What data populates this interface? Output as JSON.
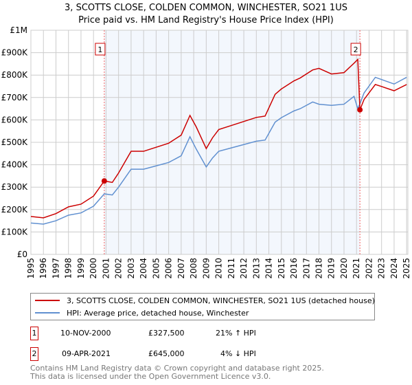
{
  "title_line1": "3, SCOTTS CLOSE, COLDEN COMMON, WINCHESTER, SO21 1US",
  "title_line2": "Price paid vs. HM Land Registry's House Price Index (HPI)",
  "chart_data": {
    "type": "line",
    "title": "3, SCOTTS CLOSE, COLDEN COMMON, WINCHESTER, SO21 1US - Price paid vs. HM Land Registry's House Price Index (HPI)",
    "xlim": [
      1995,
      2025.1
    ],
    "ylim": [
      0,
      1000000
    ],
    "y_ticks": [
      {
        "v": 0,
        "label": "£0"
      },
      {
        "v": 100000,
        "label": "£100K"
      },
      {
        "v": 200000,
        "label": "£200K"
      },
      {
        "v": 300000,
        "label": "£300K"
      },
      {
        "v": 400000,
        "label": "£400K"
      },
      {
        "v": 500000,
        "label": "£500K"
      },
      {
        "v": 600000,
        "label": "£600K"
      },
      {
        "v": 700000,
        "label": "£700K"
      },
      {
        "v": 800000,
        "label": "£800K"
      },
      {
        "v": 900000,
        "label": "£900K"
      },
      {
        "v": 1000000,
        "label": "£1M"
      }
    ],
    "x_ticks": [
      "1995",
      "1996",
      "1997",
      "1998",
      "1999",
      "2000",
      "2001",
      "2002",
      "2003",
      "2004",
      "2005",
      "2006",
      "2007",
      "2008",
      "2009",
      "2010",
      "2011",
      "2012",
      "2013",
      "2014",
      "2015",
      "2016",
      "2017",
      "2018",
      "2019",
      "2020",
      "2021",
      "2022",
      "2023",
      "2024",
      "2025"
    ],
    "grid": true,
    "series": [
      {
        "name": "3, SCOTTS CLOSE, COLDEN COMMON, WINCHESTER, SO21 1US (detached house)",
        "color": "#cc0000",
        "x": [
          1995,
          1996,
          1997,
          1998,
          1999,
          2000,
          2000.86,
          2001.5,
          2002,
          2003,
          2004,
          2005,
          2006,
          2007,
          2007.7,
          2008.2,
          2009,
          2009.5,
          2010,
          2011,
          2012,
          2013,
          2013.7,
          2014.5,
          2015,
          2016,
          2016.5,
          2017.5,
          2018,
          2019,
          2020,
          2020.8,
          2021.1,
          2021.27,
          2021.6,
          2022.5,
          2023,
          2024,
          2025
        ],
        "y": [
          169000,
          163000,
          182000,
          212000,
          224000,
          260000,
          327500,
          321000,
          363000,
          460000,
          460000,
          478000,
          496000,
          532000,
          620000,
          569000,
          472000,
          520000,
          557000,
          575000,
          593000,
          611000,
          617000,
          714000,
          738000,
          774000,
          787000,
          823000,
          830000,
          805000,
          811000,
          853000,
          870000,
          645000,
          691000,
          758000,
          749000,
          730000,
          758000
        ]
      },
      {
        "name": "HPI: Average price, detached house, Winchester",
        "color": "#6090d0",
        "x": [
          1995,
          1996,
          1997,
          1998,
          1999,
          2000,
          2000.86,
          2001.5,
          2002,
          2003,
          2004,
          2005,
          2006,
          2007,
          2007.7,
          2008.2,
          2009,
          2009.5,
          2010,
          2011,
          2012,
          2013,
          2013.7,
          2014.5,
          2015,
          2016,
          2016.5,
          2017.5,
          2018,
          2019,
          2020,
          2020.8,
          2021.1,
          2021.27,
          2021.6,
          2022.5,
          2023,
          2024,
          2025
        ],
        "y": [
          140000,
          135000,
          150000,
          175000,
          185000,
          215000,
          270000,
          265000,
          300000,
          380000,
          380000,
          395000,
          410000,
          440000,
          525000,
          470000,
          390000,
          430000,
          460000,
          475000,
          490000,
          505000,
          510000,
          590000,
          610000,
          640000,
          650000,
          680000,
          670000,
          665000,
          670000,
          705000,
          650000,
          672000,
          720000,
          790000,
          780000,
          760000,
          790000
        ]
      }
    ],
    "annotations": [
      {
        "label": "1",
        "x": 2000.86,
        "y": 327500
      },
      {
        "label": "2",
        "x": 2021.27,
        "y": 645000
      }
    ],
    "legend_placement": "below"
  },
  "legend": {
    "red": "3, SCOTTS CLOSE, COLDEN COMMON, WINCHESTER, SO21 1US (detached house)",
    "blue": "HPI: Average price, detached house, Winchester"
  },
  "sales": [
    {
      "num": "1",
      "date": "10-NOV-2000",
      "price": "£327,500",
      "hpi": "21% ↑ HPI"
    },
    {
      "num": "2",
      "date": "09-APR-2021",
      "price": "£645,000",
      "hpi": "4% ↓ HPI"
    }
  ],
  "footer1": "Contains HM Land Registry data © Crown copyright and database right 2025.",
  "footer2": "This data is licensed under the Open Government Licence v3.0."
}
